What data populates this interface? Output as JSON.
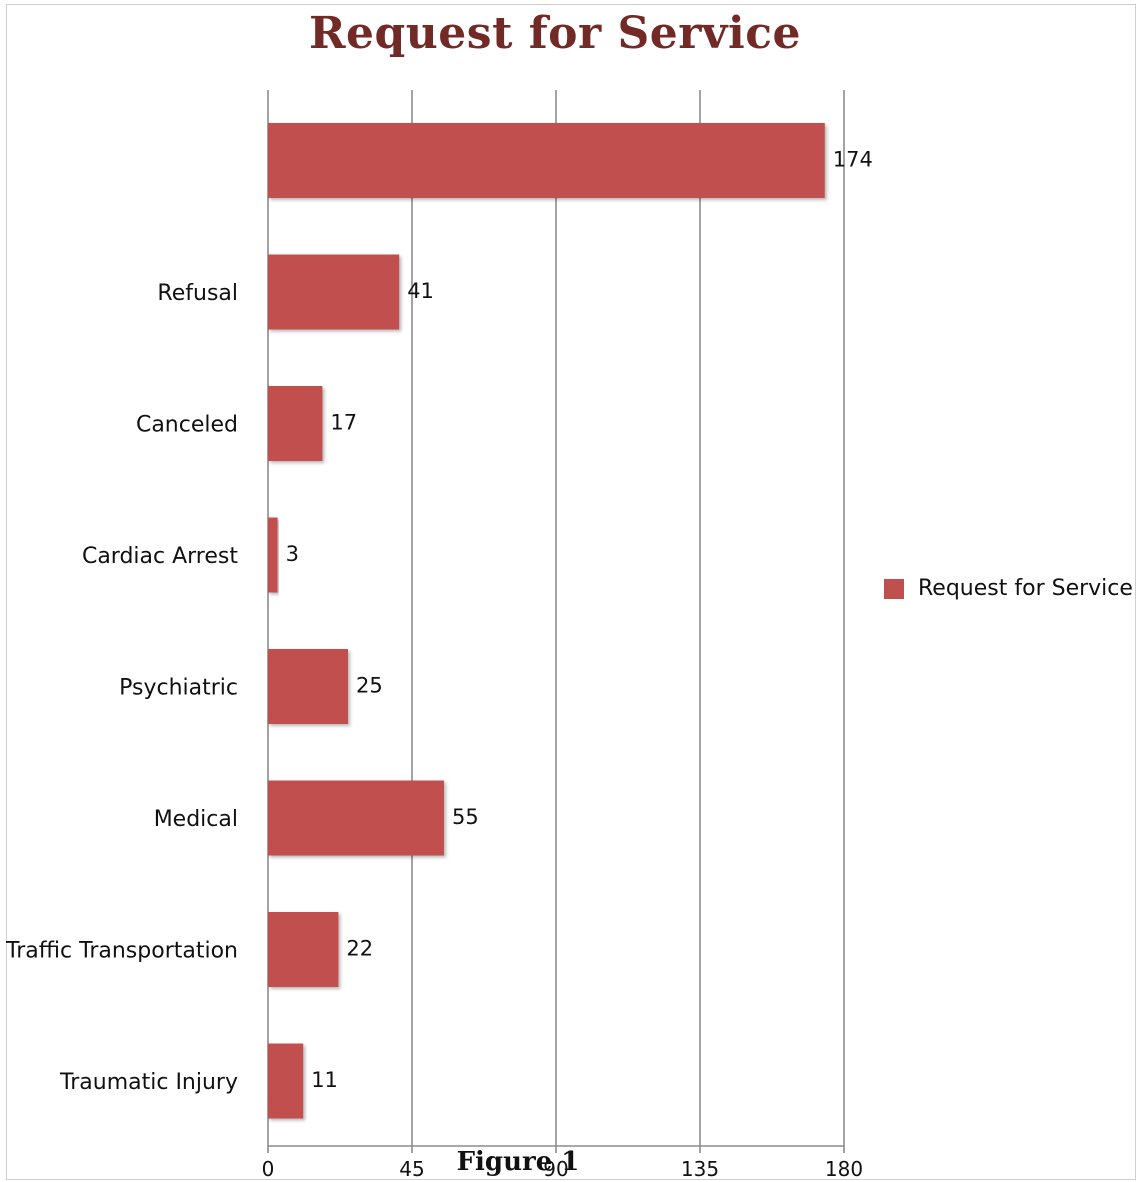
{
  "chart_data": {
    "type": "bar",
    "orientation": "horizontal",
    "title": "Request for Service",
    "categories": [
      "",
      "Refusal",
      "Canceled",
      "Cardiac Arrest",
      "Psychiatric",
      "Medical",
      "Traffic Transportation",
      "Traumatic Injury"
    ],
    "series": [
      {
        "name": "Request for Service",
        "values": [
          174,
          41,
          17,
          3,
          25,
          55,
          22,
          11
        ],
        "color": "#c0504d"
      }
    ],
    "xlim": [
      0,
      180
    ],
    "xticks": [
      0,
      45,
      90,
      135,
      180
    ],
    "grid": "vertical",
    "legend": "right",
    "data_labels": true
  },
  "caption": "Figure 1"
}
